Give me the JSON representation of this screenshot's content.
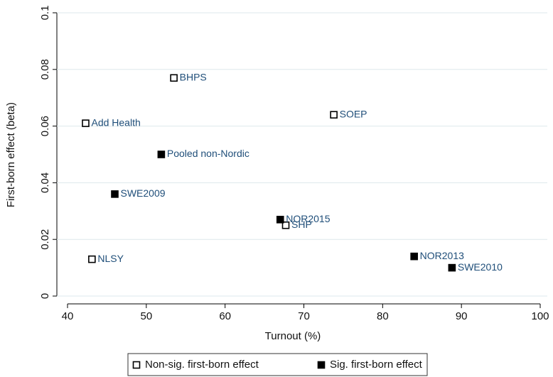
{
  "chart_data": {
    "type": "scatter",
    "x_label": "Turnout (%)",
    "y_label": "First-born effect (beta)",
    "xlim": [
      40,
      100
    ],
    "xticks": [
      40,
      50,
      60,
      70,
      80,
      90,
      100
    ],
    "ylim": [
      0,
      0.1
    ],
    "yticks": [
      0,
      0.02,
      0.04,
      0.06,
      0.08,
      0.1
    ],
    "grid": true,
    "legend": "bottom",
    "series": [
      {
        "name": "Non-sig. first-born effect",
        "color": "#000000",
        "marker": "open-square",
        "labels": [
          "BHPS",
          "Add Health",
          "SOEP",
          "SHP",
          "NLSY"
        ],
        "x": [
          53.5,
          42.3,
          73.8,
          67.7,
          43.1
        ],
        "values": [
          0.077,
          0.061,
          0.064,
          0.025,
          0.013
        ]
      },
      {
        "name": "Sig. first-born effect",
        "color": "#000000",
        "marker": "square",
        "labels": [
          "Pooled non-Nordic",
          "SWE2009",
          "NOR2015",
          "NOR2013",
          "SWE2010"
        ],
        "x": [
          51.9,
          46,
          67,
          84,
          88.8
        ],
        "values": [
          0.05,
          0.036,
          0.027,
          0.014,
          0.01
        ]
      }
    ]
  }
}
